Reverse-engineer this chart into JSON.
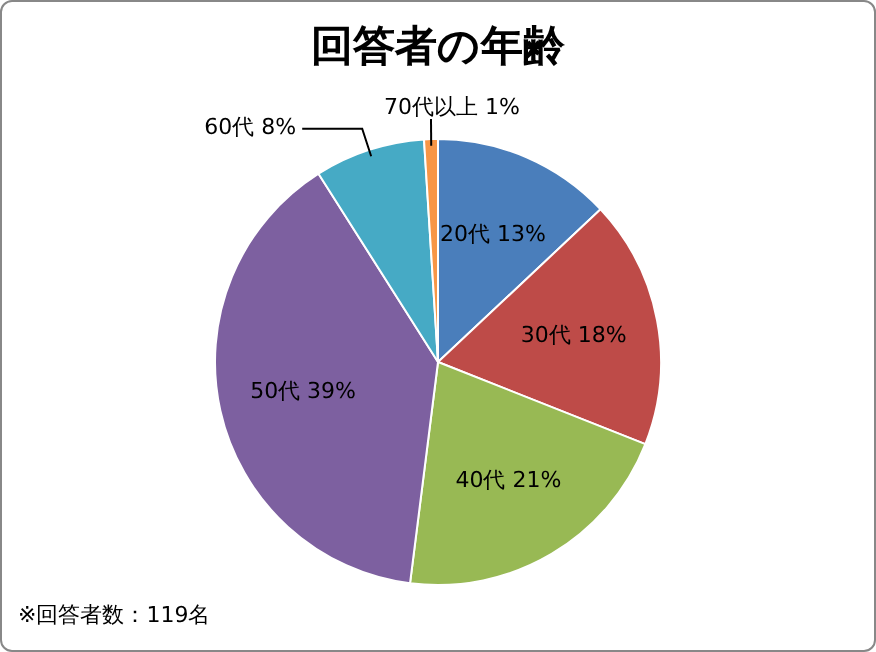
{
  "chart_data": {
    "type": "pie",
    "title": "回答者の年齢",
    "categories": [
      "20代",
      "30代",
      "40代",
      "50代",
      "60代",
      "70代以上"
    ],
    "values": [
      13,
      18,
      21,
      39,
      8,
      1
    ],
    "value_labels": [
      "13%",
      "18%",
      "21%",
      "39%",
      "8%",
      "1%"
    ],
    "colors": [
      "#4a7ebb",
      "#be4b48",
      "#98b954",
      "#7d60a0",
      "#46aac5",
      "#f79646"
    ],
    "annotations": [
      "※回答者数：119名"
    ],
    "legend": false
  }
}
